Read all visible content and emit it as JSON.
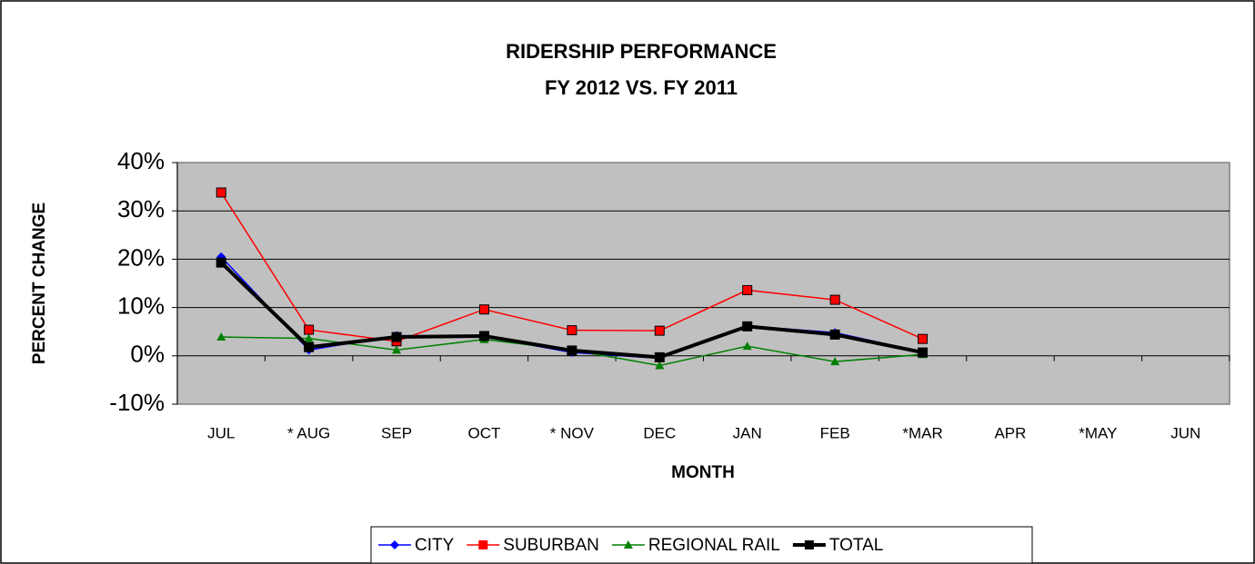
{
  "chart_data": {
    "type": "line",
    "title": "RIDERSHIP PERFORMANCE",
    "subtitle": "FY 2012 VS. FY 2011",
    "x_label": "MONTH",
    "y_label": "PERCENT CHANGE",
    "categories": [
      "JUL",
      "* AUG",
      "SEP",
      "OCT",
      "* NOV",
      "DEC",
      "JAN",
      "FEB",
      "*MAR",
      "APR",
      "*MAY",
      "JUN"
    ],
    "series": [
      {
        "name": "CITY",
        "color": "#0000ff",
        "marker": "diamond",
        "values": [
          20.5,
          1.2,
          4.2,
          4.0,
          0.7,
          -0.5,
          6.2,
          4.8,
          0.8,
          null,
          null,
          null
        ]
      },
      {
        "name": "SUBURBAN",
        "color": "#ff0000",
        "marker": "square",
        "values": [
          33.8,
          5.4,
          3.0,
          9.6,
          5.3,
          5.2,
          13.6,
          11.6,
          3.5,
          null,
          null,
          null
        ]
      },
      {
        "name": "REGIONAL RAIL",
        "color": "#008000",
        "marker": "triangle",
        "values": [
          3.9,
          3.6,
          1.2,
          3.4,
          1.2,
          -2.0,
          2.0,
          -1.2,
          0.3,
          null,
          null,
          null
        ]
      },
      {
        "name": "TOTAL",
        "color": "#000000",
        "marker": "square",
        "width": 4,
        "values": [
          19.3,
          1.8,
          3.9,
          4.1,
          1.1,
          -0.3,
          6.1,
          4.4,
          0.7,
          null,
          null,
          null
        ]
      }
    ],
    "ylim": [
      -10,
      40
    ],
    "yticks": [
      {
        "value": -10,
        "label": "-10%"
      },
      {
        "value": 0,
        "label": "0%"
      },
      {
        "value": 10,
        "label": "10%"
      },
      {
        "value": 20,
        "label": "20%"
      },
      {
        "value": 30,
        "label": "30%"
      },
      {
        "value": 40,
        "label": "40%"
      }
    ],
    "grid": true,
    "plot_background": "#c0c0c0",
    "legend": "bottom"
  }
}
